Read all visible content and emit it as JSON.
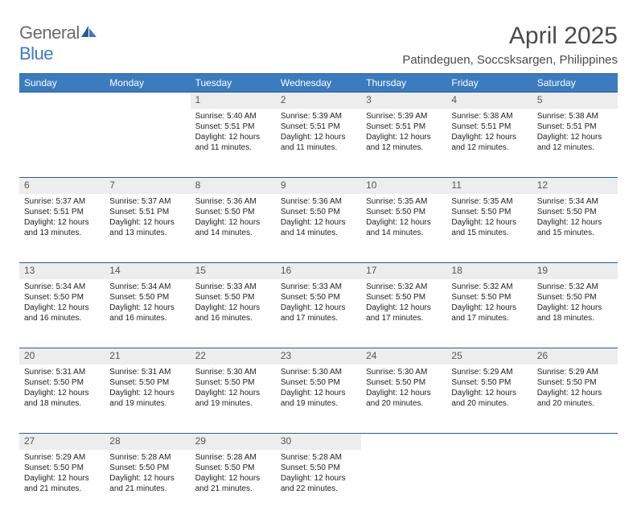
{
  "logo": {
    "part1": "General",
    "part2": "Blue"
  },
  "title": "April 2025",
  "location": "Patindeguen, Soccsksargen, Philippines",
  "colors": {
    "header_bg": "#3b7bbf",
    "header_border": "#2a5d8f",
    "daynum_bg": "#ededed",
    "text": "#333333",
    "logo_gray": "#6a6a6a",
    "logo_blue": "#3b7bbf"
  },
  "weekdays": [
    "Sunday",
    "Monday",
    "Tuesday",
    "Wednesday",
    "Thursday",
    "Friday",
    "Saturday"
  ],
  "weeks": [
    {
      "nums": [
        "",
        "",
        "1",
        "2",
        "3",
        "4",
        "5"
      ],
      "cells": [
        null,
        null,
        {
          "sunrise": "Sunrise: 5:40 AM",
          "sunset": "Sunset: 5:51 PM",
          "day1": "Daylight: 12 hours",
          "day2": "and 11 minutes."
        },
        {
          "sunrise": "Sunrise: 5:39 AM",
          "sunset": "Sunset: 5:51 PM",
          "day1": "Daylight: 12 hours",
          "day2": "and 11 minutes."
        },
        {
          "sunrise": "Sunrise: 5:39 AM",
          "sunset": "Sunset: 5:51 PM",
          "day1": "Daylight: 12 hours",
          "day2": "and 12 minutes."
        },
        {
          "sunrise": "Sunrise: 5:38 AM",
          "sunset": "Sunset: 5:51 PM",
          "day1": "Daylight: 12 hours",
          "day2": "and 12 minutes."
        },
        {
          "sunrise": "Sunrise: 5:38 AM",
          "sunset": "Sunset: 5:51 PM",
          "day1": "Daylight: 12 hours",
          "day2": "and 12 minutes."
        }
      ]
    },
    {
      "nums": [
        "6",
        "7",
        "8",
        "9",
        "10",
        "11",
        "12"
      ],
      "cells": [
        {
          "sunrise": "Sunrise: 5:37 AM",
          "sunset": "Sunset: 5:51 PM",
          "day1": "Daylight: 12 hours",
          "day2": "and 13 minutes."
        },
        {
          "sunrise": "Sunrise: 5:37 AM",
          "sunset": "Sunset: 5:51 PM",
          "day1": "Daylight: 12 hours",
          "day2": "and 13 minutes."
        },
        {
          "sunrise": "Sunrise: 5:36 AM",
          "sunset": "Sunset: 5:50 PM",
          "day1": "Daylight: 12 hours",
          "day2": "and 14 minutes."
        },
        {
          "sunrise": "Sunrise: 5:36 AM",
          "sunset": "Sunset: 5:50 PM",
          "day1": "Daylight: 12 hours",
          "day2": "and 14 minutes."
        },
        {
          "sunrise": "Sunrise: 5:35 AM",
          "sunset": "Sunset: 5:50 PM",
          "day1": "Daylight: 12 hours",
          "day2": "and 14 minutes."
        },
        {
          "sunrise": "Sunrise: 5:35 AM",
          "sunset": "Sunset: 5:50 PM",
          "day1": "Daylight: 12 hours",
          "day2": "and 15 minutes."
        },
        {
          "sunrise": "Sunrise: 5:34 AM",
          "sunset": "Sunset: 5:50 PM",
          "day1": "Daylight: 12 hours",
          "day2": "and 15 minutes."
        }
      ]
    },
    {
      "nums": [
        "13",
        "14",
        "15",
        "16",
        "17",
        "18",
        "19"
      ],
      "cells": [
        {
          "sunrise": "Sunrise: 5:34 AM",
          "sunset": "Sunset: 5:50 PM",
          "day1": "Daylight: 12 hours",
          "day2": "and 16 minutes."
        },
        {
          "sunrise": "Sunrise: 5:34 AM",
          "sunset": "Sunset: 5:50 PM",
          "day1": "Daylight: 12 hours",
          "day2": "and 16 minutes."
        },
        {
          "sunrise": "Sunrise: 5:33 AM",
          "sunset": "Sunset: 5:50 PM",
          "day1": "Daylight: 12 hours",
          "day2": "and 16 minutes."
        },
        {
          "sunrise": "Sunrise: 5:33 AM",
          "sunset": "Sunset: 5:50 PM",
          "day1": "Daylight: 12 hours",
          "day2": "and 17 minutes."
        },
        {
          "sunrise": "Sunrise: 5:32 AM",
          "sunset": "Sunset: 5:50 PM",
          "day1": "Daylight: 12 hours",
          "day2": "and 17 minutes."
        },
        {
          "sunrise": "Sunrise: 5:32 AM",
          "sunset": "Sunset: 5:50 PM",
          "day1": "Daylight: 12 hours",
          "day2": "and 17 minutes."
        },
        {
          "sunrise": "Sunrise: 5:32 AM",
          "sunset": "Sunset: 5:50 PM",
          "day1": "Daylight: 12 hours",
          "day2": "and 18 minutes."
        }
      ]
    },
    {
      "nums": [
        "20",
        "21",
        "22",
        "23",
        "24",
        "25",
        "26"
      ],
      "cells": [
        {
          "sunrise": "Sunrise: 5:31 AM",
          "sunset": "Sunset: 5:50 PM",
          "day1": "Daylight: 12 hours",
          "day2": "and 18 minutes."
        },
        {
          "sunrise": "Sunrise: 5:31 AM",
          "sunset": "Sunset: 5:50 PM",
          "day1": "Daylight: 12 hours",
          "day2": "and 19 minutes."
        },
        {
          "sunrise": "Sunrise: 5:30 AM",
          "sunset": "Sunset: 5:50 PM",
          "day1": "Daylight: 12 hours",
          "day2": "and 19 minutes."
        },
        {
          "sunrise": "Sunrise: 5:30 AM",
          "sunset": "Sunset: 5:50 PM",
          "day1": "Daylight: 12 hours",
          "day2": "and 19 minutes."
        },
        {
          "sunrise": "Sunrise: 5:30 AM",
          "sunset": "Sunset: 5:50 PM",
          "day1": "Daylight: 12 hours",
          "day2": "and 20 minutes."
        },
        {
          "sunrise": "Sunrise: 5:29 AM",
          "sunset": "Sunset: 5:50 PM",
          "day1": "Daylight: 12 hours",
          "day2": "and 20 minutes."
        },
        {
          "sunrise": "Sunrise: 5:29 AM",
          "sunset": "Sunset: 5:50 PM",
          "day1": "Daylight: 12 hours",
          "day2": "and 20 minutes."
        }
      ]
    },
    {
      "nums": [
        "27",
        "28",
        "29",
        "30",
        "",
        "",
        ""
      ],
      "cells": [
        {
          "sunrise": "Sunrise: 5:29 AM",
          "sunset": "Sunset: 5:50 PM",
          "day1": "Daylight: 12 hours",
          "day2": "and 21 minutes."
        },
        {
          "sunrise": "Sunrise: 5:28 AM",
          "sunset": "Sunset: 5:50 PM",
          "day1": "Daylight: 12 hours",
          "day2": "and 21 minutes."
        },
        {
          "sunrise": "Sunrise: 5:28 AM",
          "sunset": "Sunset: 5:50 PM",
          "day1": "Daylight: 12 hours",
          "day2": "and 21 minutes."
        },
        {
          "sunrise": "Sunrise: 5:28 AM",
          "sunset": "Sunset: 5:50 PM",
          "day1": "Daylight: 12 hours",
          "day2": "and 22 minutes."
        },
        null,
        null,
        null
      ]
    }
  ]
}
